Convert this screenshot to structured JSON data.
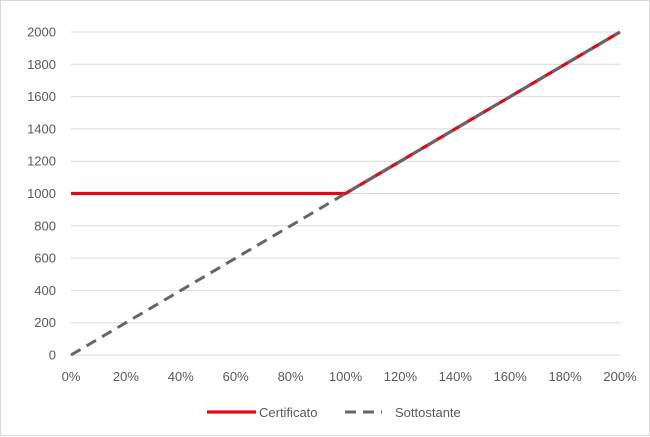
{
  "chart_data": {
    "type": "line",
    "title": "",
    "xlabel": "",
    "ylabel": "",
    "x": [
      0,
      0.2,
      0.4,
      0.6,
      0.8,
      1.0,
      1.2,
      1.4,
      1.6,
      1.8,
      2.0
    ],
    "x_tick_labels": [
      "0%",
      "20%",
      "40%",
      "60%",
      "80%",
      "100%",
      "120%",
      "140%",
      "160%",
      "180%",
      "200%"
    ],
    "y_ticks": [
      0,
      200,
      400,
      600,
      800,
      1000,
      1200,
      1400,
      1600,
      1800,
      2000
    ],
    "y_tick_labels": [
      "0",
      "200",
      "400",
      "600",
      "800",
      "1000",
      "1200",
      "1400",
      "1600",
      "1800",
      "2000"
    ],
    "xlim": [
      0,
      2.0
    ],
    "ylim": [
      0,
      2000
    ],
    "grid": "horizontal",
    "legend_position": "bottom",
    "series": [
      {
        "name": "Certificato",
        "style": "solid",
        "color": "#e30613",
        "values": [
          1000,
          1000,
          1000,
          1000,
          1000,
          1000,
          1200,
          1400,
          1600,
          1800,
          2000
        ]
      },
      {
        "name": "Sottostante",
        "style": "dashed",
        "color": "#666666",
        "values": [
          0,
          200,
          400,
          600,
          800,
          1000,
          1200,
          1400,
          1600,
          1800,
          2000
        ]
      }
    ]
  }
}
